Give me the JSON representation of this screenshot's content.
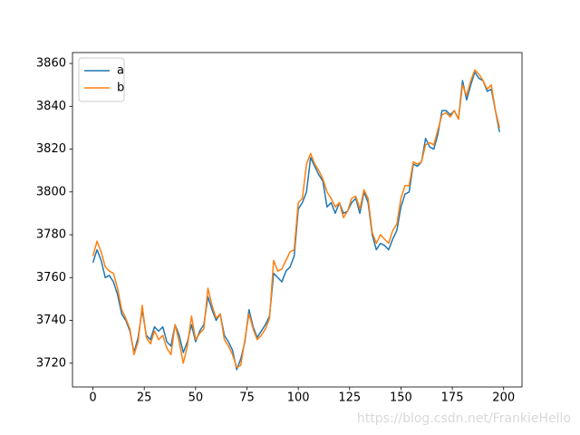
{
  "chart_data": {
    "type": "line",
    "x": [
      0,
      2,
      4,
      6,
      8,
      10,
      12,
      14,
      16,
      18,
      20,
      22,
      24,
      26,
      28,
      30,
      32,
      34,
      36,
      38,
      40,
      42,
      44,
      46,
      48,
      50,
      52,
      54,
      56,
      58,
      60,
      62,
      64,
      66,
      68,
      70,
      72,
      74,
      76,
      78,
      80,
      82,
      84,
      86,
      88,
      90,
      92,
      94,
      96,
      98,
      100,
      102,
      104,
      106,
      108,
      110,
      112,
      114,
      116,
      118,
      120,
      122,
      124,
      126,
      128,
      130,
      132,
      134,
      136,
      138,
      140,
      142,
      144,
      146,
      148,
      150,
      152,
      154,
      156,
      158,
      160,
      162,
      164,
      166,
      168,
      170,
      172,
      174,
      176,
      178,
      180,
      182,
      184,
      186,
      188,
      190,
      192,
      194,
      196,
      198
    ],
    "series": [
      {
        "name": "a",
        "color": "#1f77b4",
        "values": [
          3767,
          3773,
          3768,
          3760,
          3761,
          3758,
          3752,
          3743,
          3740,
          3735,
          3725,
          3732,
          3745,
          3733,
          3731,
          3737,
          3735,
          3737,
          3730,
          3728,
          3738,
          3733,
          3725,
          3730,
          3738,
          3730,
          3735,
          3738,
          3751,
          3745,
          3740,
          3743,
          3733,
          3730,
          3726,
          3717,
          3722,
          3730,
          3745,
          3737,
          3732,
          3735,
          3738,
          3742,
          3762,
          3760,
          3758,
          3763,
          3765,
          3770,
          3792,
          3795,
          3800,
          3816,
          3812,
          3808,
          3805,
          3793,
          3795,
          3790,
          3795,
          3790,
          3791,
          3795,
          3797,
          3790,
          3800,
          3795,
          3780,
          3773,
          3776,
          3775,
          3773,
          3778,
          3782,
          3793,
          3799,
          3800,
          3813,
          3812,
          3814,
          3825,
          3821,
          3820,
          3827,
          3838,
          3838,
          3836,
          3838,
          3834,
          3852,
          3843,
          3850,
          3856,
          3853,
          3852,
          3847,
          3848,
          3838,
          3828
        ]
      },
      {
        "name": "b",
        "color": "#ff7f0e",
        "values": [
          3770,
          3777,
          3772,
          3765,
          3763,
          3762,
          3755,
          3745,
          3741,
          3736,
          3724,
          3730,
          3747,
          3732,
          3729,
          3735,
          3731,
          3733,
          3727,
          3724,
          3738,
          3730,
          3720,
          3728,
          3742,
          3731,
          3734,
          3736,
          3755,
          3747,
          3741,
          3743,
          3731,
          3728,
          3724,
          3718,
          3719,
          3731,
          3743,
          3736,
          3731,
          3733,
          3736,
          3741,
          3768,
          3763,
          3764,
          3768,
          3772,
          3773,
          3795,
          3797,
          3813,
          3818,
          3813,
          3810,
          3806,
          3800,
          3797,
          3793,
          3795,
          3788,
          3791,
          3797,
          3798,
          3792,
          3801,
          3797,
          3781,
          3776,
          3780,
          3778,
          3776,
          3782,
          3785,
          3797,
          3803,
          3803,
          3814,
          3813,
          3814,
          3822,
          3823,
          3822,
          3829,
          3836,
          3837,
          3835,
          3838,
          3834,
          3850,
          3845,
          3852,
          3857,
          3855,
          3852,
          3848,
          3850,
          3838,
          3830
        ]
      }
    ],
    "xlim": [
      -9.95,
      208.95
    ],
    "xticks": [
      0,
      25,
      50,
      75,
      100,
      125,
      150,
      175,
      200
    ],
    "ylim": [
      3708.9,
      3865.1
    ],
    "yticks": [
      3720,
      3740,
      3760,
      3780,
      3800,
      3820,
      3840,
      3860
    ],
    "legend": "upper left",
    "watermark": "https://blog.csdn.net/FrankieHello"
  }
}
